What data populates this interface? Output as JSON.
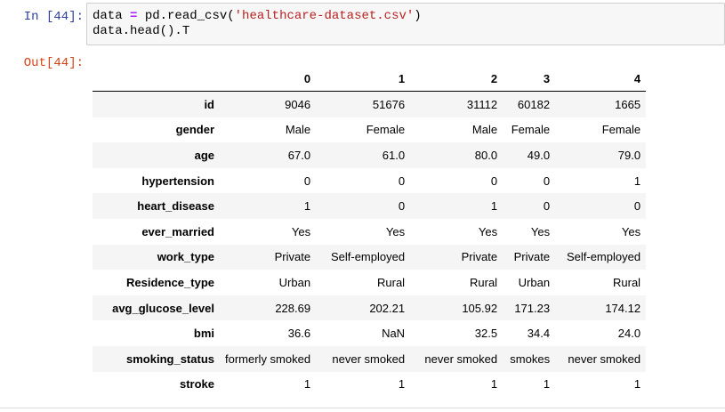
{
  "cell": {
    "in_prompt": "In [44]:",
    "out_prompt": "Out[44]:",
    "code_line1": {
      "var": "data",
      "op": " = ",
      "call": "pd.read_csv(",
      "arg": "'healthcare-dataset.csv'",
      "close": ")"
    },
    "code_line2": "data.head().T"
  },
  "table": {
    "columns": [
      "",
      "0",
      "1",
      "2",
      "3",
      "4"
    ],
    "rows": [
      {
        "label": "id",
        "values": [
          "9046",
          "51676",
          "31112",
          "60182",
          "1665"
        ]
      },
      {
        "label": "gender",
        "values": [
          "Male",
          "Female",
          "Male",
          "Female",
          "Female"
        ]
      },
      {
        "label": "age",
        "values": [
          "67.0",
          "61.0",
          "80.0",
          "49.0",
          "79.0"
        ]
      },
      {
        "label": "hypertension",
        "values": [
          "0",
          "0",
          "0",
          "0",
          "1"
        ]
      },
      {
        "label": "heart_disease",
        "values": [
          "1",
          "0",
          "1",
          "0",
          "0"
        ]
      },
      {
        "label": "ever_married",
        "values": [
          "Yes",
          "Yes",
          "Yes",
          "Yes",
          "Yes"
        ]
      },
      {
        "label": "work_type",
        "values": [
          "Private",
          "Self-employed",
          "Private",
          "Private",
          "Self-employed"
        ]
      },
      {
        "label": "Residence_type",
        "values": [
          "Urban",
          "Rural",
          "Rural",
          "Urban",
          "Rural"
        ]
      },
      {
        "label": "avg_glucose_level",
        "values": [
          "228.69",
          "202.21",
          "105.92",
          "171.23",
          "174.12"
        ]
      },
      {
        "label": "bmi",
        "values": [
          "36.6",
          "NaN",
          "32.5",
          "34.4",
          "24.0"
        ]
      },
      {
        "label": "smoking_status",
        "values": [
          "formerly smoked",
          "never smoked",
          "never smoked",
          "smokes",
          "never smoked"
        ]
      },
      {
        "label": "stroke",
        "values": [
          "1",
          "1",
          "1",
          "1",
          "1"
        ]
      }
    ]
  }
}
